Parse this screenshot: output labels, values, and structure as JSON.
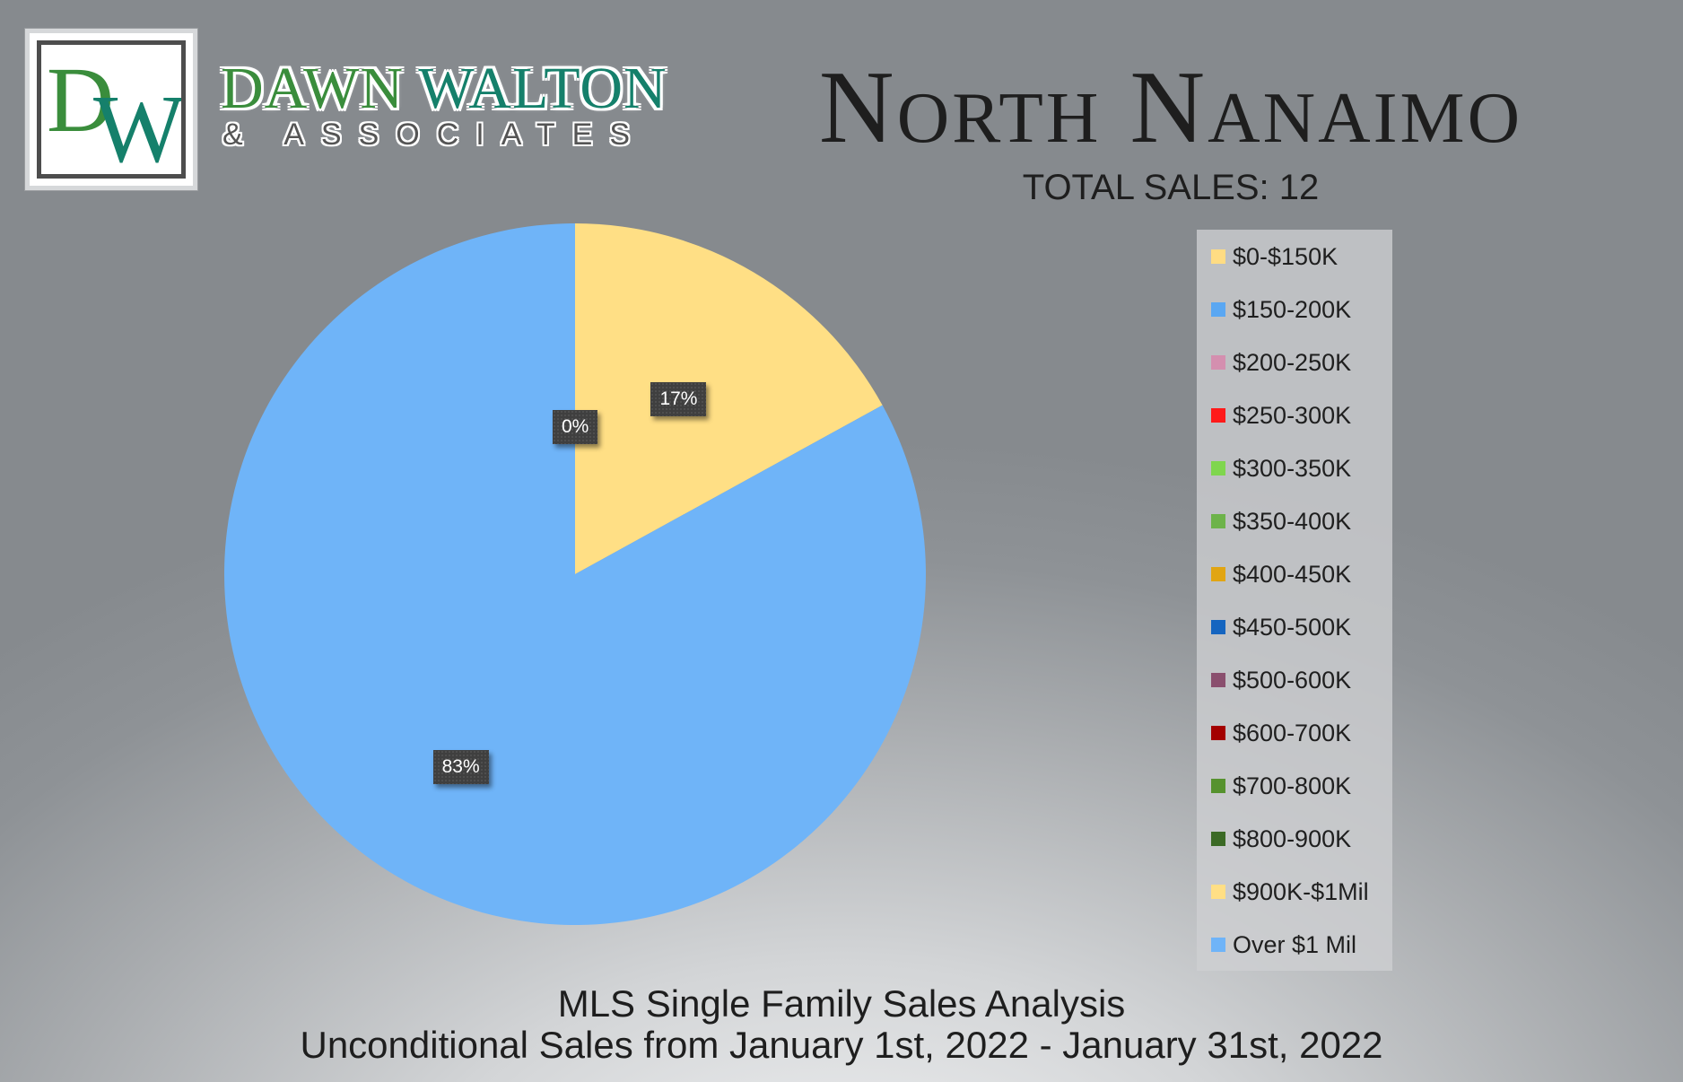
{
  "brand": {
    "monogram": "DW",
    "name_part1": "DAWN",
    "name_part2": "WALTON",
    "sub": "& ASSOCIATES"
  },
  "header": {
    "title": "North Nanaimo",
    "total_sales": "TOTAL SALES: 12"
  },
  "footer": {
    "line1": "MLS Single Family Sales Analysis",
    "line2": "Unconditional Sales from January 1st, 2022 - January 31st, 2022"
  },
  "chart_data": {
    "type": "pie",
    "title": "",
    "categories": [
      "$0-$150K",
      "$150-200K",
      "$200-250K",
      "$250-300K",
      "$300-350K",
      "$350-400K",
      "$400-450K",
      "$450-500K",
      "$500-600K",
      "$600-700K",
      "$700-800K",
      "$800-900K",
      "$900K-$1Mil",
      "Over $1 Mil"
    ],
    "values": [
      0,
      0,
      0,
      0,
      0,
      0,
      0,
      0,
      0,
      0,
      0,
      0,
      17,
      83
    ],
    "colors": [
      "#ffdc83",
      "#5aa7f2",
      "#d48faf",
      "#ff1a1a",
      "#7fd64e",
      "#6db34a",
      "#e1a513",
      "#1565c0",
      "#8a4f6e",
      "#a30000",
      "#56922e",
      "#3b6a25",
      "#ffdf85",
      "#6fb4f8"
    ],
    "data_labels": [
      {
        "text": "0%",
        "category": "$0-$150K"
      },
      {
        "text": "17%",
        "category": "$900K-$1Mil"
      },
      {
        "text": "83%",
        "category": "Over $1 Mil"
      }
    ],
    "legend_position": "right"
  }
}
